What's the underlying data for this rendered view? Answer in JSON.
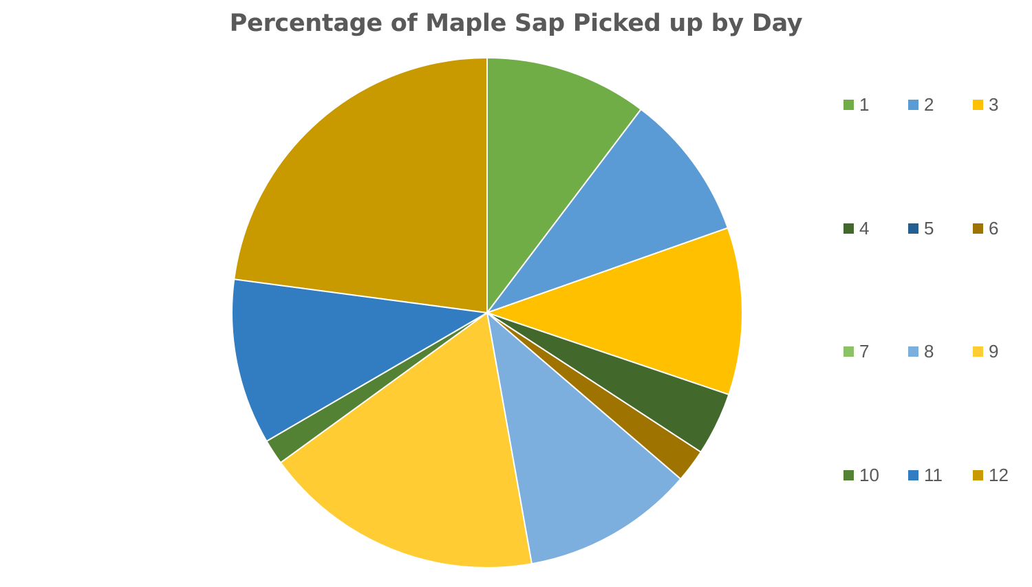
{
  "chart_data": {
    "type": "pie",
    "title": "Percentage of Maple Sap Picked up by Day",
    "categories": [
      "1",
      "2",
      "3",
      "4",
      "5",
      "6",
      "7",
      "8",
      "9",
      "10",
      "11",
      "12"
    ],
    "values": [
      10.3,
      9.3,
      10.6,
      4.0,
      0,
      2.1,
      0,
      10.9,
      17.8,
      1.6,
      10.5,
      22.9
    ],
    "colors": [
      "#70AD47",
      "#5B9BD5",
      "#FFC000",
      "#43682B",
      "#255E91",
      "#9E7300",
      "#8CC168",
      "#7CAFDD",
      "#FFCD33",
      "#548235",
      "#327DC2",
      "#C99A00"
    ],
    "legend": {
      "position": "right",
      "items": [
        {
          "label": "1",
          "color": "#70AD47"
        },
        {
          "label": "2",
          "color": "#5B9BD5"
        },
        {
          "label": "3",
          "color": "#FFC000"
        },
        {
          "label": "4",
          "color": "#43682B"
        },
        {
          "label": "5",
          "color": "#255E91"
        },
        {
          "label": "6",
          "color": "#9E7300"
        },
        {
          "label": "7",
          "color": "#8CC168"
        },
        {
          "label": "8",
          "color": "#7CAFDD"
        },
        {
          "label": "9",
          "color": "#FFCD33"
        },
        {
          "label": "10",
          "color": "#548235"
        },
        {
          "label": "11",
          "color": "#327DC2"
        },
        {
          "label": "12",
          "color": "#C99A00"
        }
      ]
    }
  }
}
